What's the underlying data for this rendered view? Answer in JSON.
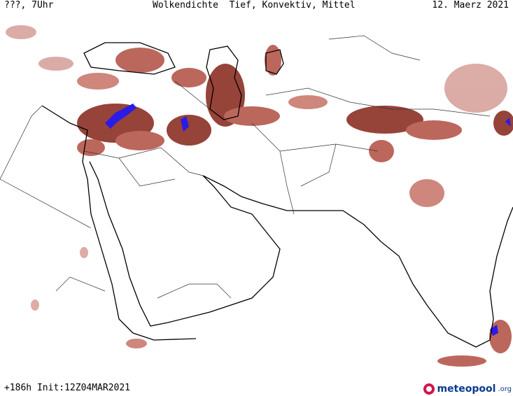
{
  "header": {
    "left": "???, 7Uhr",
    "center": "Wolkendichte  Tief, Konvektiv, Mittel",
    "right": "12. Maerz 2021"
  },
  "footer": {
    "run_info": "+186h Init:12Z04MAR2021",
    "logo_text": "meteopool",
    "logo_suffix": ".org"
  },
  "colors": {
    "cloud_dark": "#8b2f24",
    "cloud_medium": "#b5574b",
    "cloud_light": "#d8a39d",
    "convective": "#2a1be6",
    "coast": "#000000",
    "border": "#555555"
  }
}
